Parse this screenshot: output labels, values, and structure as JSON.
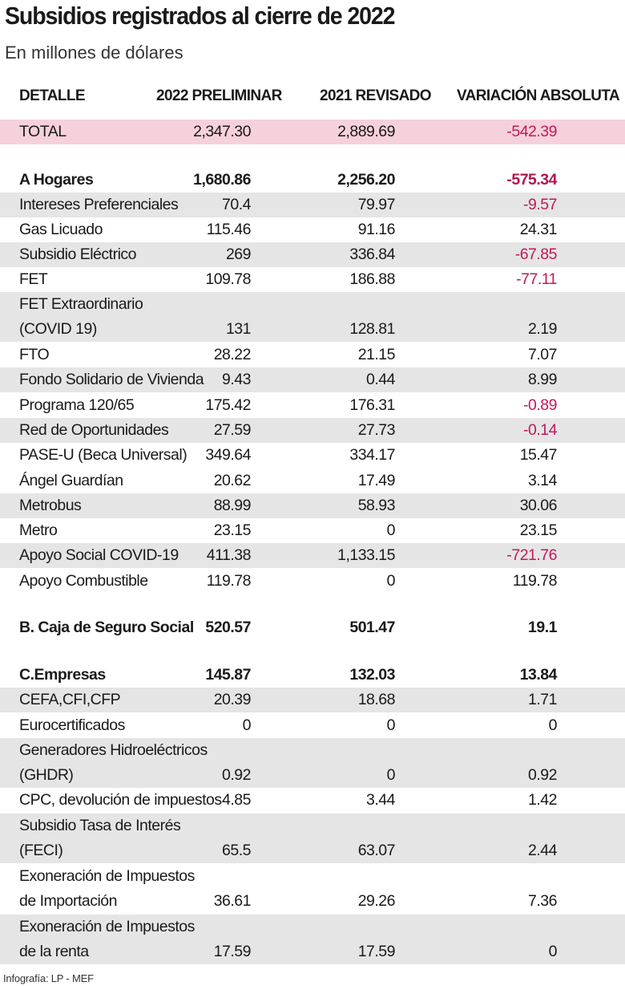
{
  "title": "Subsidios registrados al cierre de 2022",
  "subtitle": "En millones de dólares",
  "columns": {
    "detail": "DETALLE",
    "y2022": "2022 PRELIMINAR",
    "y2021": "2021 REVISADO",
    "variation": "VARIACIÓN ABSOLUTA"
  },
  "total": {
    "label": "TOTAL",
    "y2022": "2,347.30",
    "y2021": "2,889.69",
    "variation": "-542.39"
  },
  "hogares": {
    "label": "A Hogares",
    "y2022": "1,680.86",
    "y2021": "2,256.20",
    "variation": "-575.34",
    "items": [
      {
        "label": "Intereses Preferenciales",
        "y2022": "70.4",
        "y2021": "79.97",
        "variation": "-9.57"
      },
      {
        "label": "Gas Licuado",
        "y2022": "115.46",
        "y2021": "91.16",
        "variation": "24.31"
      },
      {
        "label": "Subsidio Eléctrico",
        "y2022": "269",
        "y2021": "336.84",
        "variation": "-67.85"
      },
      {
        "label": "FET",
        "y2022": "109.78",
        "y2021": "186.88",
        "variation": "-77.11"
      },
      {
        "label": "FET Extraordinario",
        "label2": "(COVID 19)",
        "y2022": "131",
        "y2021": "128.81",
        "variation": "2.19"
      },
      {
        "label": "FTO",
        "y2022": "28.22",
        "y2021": "21.15",
        "variation": "7.07"
      },
      {
        "label": "Fondo Solidario de Vivienda",
        "y2022": "9.43",
        "y2021": "0.44",
        "variation": "8.99"
      },
      {
        "label": "Programa 120/65",
        "y2022": "175.42",
        "y2021": "176.31",
        "variation": "-0.89"
      },
      {
        "label": "Red de Oportunidades",
        "y2022": "27.59",
        "y2021": "27.73",
        "variation": "-0.14"
      },
      {
        "label": "PASE-U (Beca Universal)",
        "y2022": "349.64",
        "y2021": "334.17",
        "variation": "15.47"
      },
      {
        "label": "Ángel Guardían",
        "y2022": "20.62",
        "y2021": "17.49",
        "variation": "3.14"
      },
      {
        "label": "Metrobus",
        "y2022": "88.99",
        "y2021": "58.93",
        "variation": "30.06"
      },
      {
        "label": "Metro",
        "y2022": "23.15",
        "y2021": "0",
        "variation": "23.15"
      },
      {
        "label": "Apoyo Social COVID-19",
        "y2022": "411.38",
        "y2021": "1,133.15",
        "variation": "-721.76"
      },
      {
        "label": "Apoyo Combustible",
        "y2022": "119.78",
        "y2021": "0",
        "variation": "119.78"
      }
    ]
  },
  "css": {
    "label": "B. Caja de Seguro Social",
    "y2022": "520.57",
    "y2021": "501.47",
    "variation": "19.1"
  },
  "empresas": {
    "label": "C.Empresas",
    "y2022": "145.87",
    "y2021": "132.03",
    "variation": "13.84",
    "items": [
      {
        "label": "CEFA,CFI,CFP",
        "y2022": "20.39",
        "y2021": "18.68",
        "variation": "1.71"
      },
      {
        "label": "Eurocertificados",
        "y2022": "0",
        "y2021": "0",
        "variation": "0"
      },
      {
        "label": "Generadores Hidroeléctricos",
        "label2": "(GHDR)",
        "y2022": "0.92",
        "y2021": "0",
        "variation": "0.92"
      },
      {
        "label": "CPC, devolución de impuestos",
        "y2022": "4.85",
        "y2021": "3.44",
        "variation": "1.42"
      },
      {
        "label": "Subsidio Tasa de Interés",
        "label2": "(FECI)",
        "y2022": "65.5",
        "y2021": "63.07",
        "variation": "2.44"
      },
      {
        "label": "Exoneración de Impuestos",
        "label2": "de Importación",
        "y2022": "36.61",
        "y2021": "29.26",
        "variation": "7.36"
      },
      {
        "label": "Exoneración de Impuestos",
        "label2": "de la renta",
        "y2022": "17.59",
        "y2021": "17.59",
        "variation": "0"
      }
    ]
  },
  "footer": "Infografía: LP - MEF",
  "colors": {
    "negative": "#c2185b",
    "total_bg": "#f6d1dc",
    "stripe_bg": "#e5e5e6"
  }
}
